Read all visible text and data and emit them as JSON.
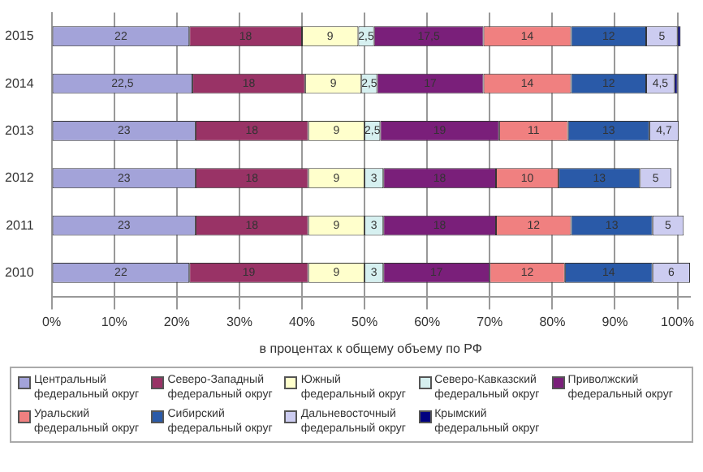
{
  "chart_data": {
    "type": "bar",
    "orientation": "horizontal",
    "stacked": true,
    "categories": [
      "2015",
      "2014",
      "2013",
      "2012",
      "2011",
      "2010"
    ],
    "xlabel": "в процентах к общему объему по РФ",
    "xlim": [
      0,
      102
    ],
    "xticks": [
      {
        "value": 0,
        "label": "0%"
      },
      {
        "value": 10,
        "label": "10%"
      },
      {
        "value": 20,
        "label": "20%"
      },
      {
        "value": 30,
        "label": "30%"
      },
      {
        "value": 40,
        "label": "40%"
      },
      {
        "value": 50,
        "label": "50%"
      },
      {
        "value": 60,
        "label": "60%"
      },
      {
        "value": 70,
        "label": "70%"
      },
      {
        "value": 80,
        "label": "80%"
      },
      {
        "value": 90,
        "label": "90%"
      },
      {
        "value": 100,
        "label": "100%"
      }
    ],
    "grid": "x",
    "legend": "bottom",
    "series": [
      {
        "name": "Центральный федеральный округ",
        "color": "#a3a3d9",
        "values": [
          22,
          22.5,
          23,
          23,
          23,
          22
        ],
        "value_labels": [
          "22",
          "22,5",
          "23",
          "23",
          "23",
          "22"
        ]
      },
      {
        "name": "Северо-Западный федеральный округ",
        "color": "#993366",
        "values": [
          18,
          18,
          18,
          18,
          18,
          19
        ],
        "value_labels": [
          "18",
          "18",
          "18",
          "18",
          "18",
          "19"
        ]
      },
      {
        "name": "Южный федеральный округ",
        "color": "#ffffcc",
        "values": [
          9,
          9,
          9,
          9,
          9,
          9
        ],
        "value_labels": [
          "9",
          "9",
          "9",
          "9",
          "9",
          "9"
        ]
      },
      {
        "name": "Северо-Кавказский федеральный округ",
        "color": "#d6f0f0",
        "values": [
          2.5,
          2.5,
          2.5,
          3,
          3,
          3
        ],
        "value_labels": [
          "2,5",
          "2,5",
          "2,5",
          "3",
          "3",
          "3"
        ]
      },
      {
        "name": "Приволжский федеральный округ",
        "color": "#7a1f7a",
        "values": [
          17.5,
          17,
          19,
          18,
          18,
          17
        ],
        "value_labels": [
          "17,5",
          "17",
          "19",
          "18",
          "18",
          "17"
        ]
      },
      {
        "name": "Уральский федеральный округ",
        "color": "#f08080",
        "values": [
          14,
          14,
          11,
          10,
          12,
          12
        ],
        "value_labels": [
          "14",
          "14",
          "11",
          "10",
          "12",
          "12"
        ]
      },
      {
        "name": "Сибирский федеральный округ",
        "color": "#2a5aa8",
        "values": [
          12,
          12,
          13,
          13,
          13,
          14
        ],
        "value_labels": [
          "12",
          "12",
          "13",
          "13",
          "13",
          "14"
        ]
      },
      {
        "name": "Дальневосточный федеральный округ",
        "color": "#ccccf0",
        "values": [
          5,
          4.5,
          4.7,
          5,
          5,
          6
        ],
        "value_labels": [
          "5",
          "4,5",
          "4,7",
          "5",
          "5",
          "6"
        ]
      },
      {
        "name": "Крымский федеральный округ",
        "color": "#000080",
        "values": [
          0.5,
          0.5,
          null,
          null,
          null,
          null
        ],
        "value_labels": [
          null,
          null,
          null,
          null,
          null,
          null
        ]
      }
    ]
  }
}
